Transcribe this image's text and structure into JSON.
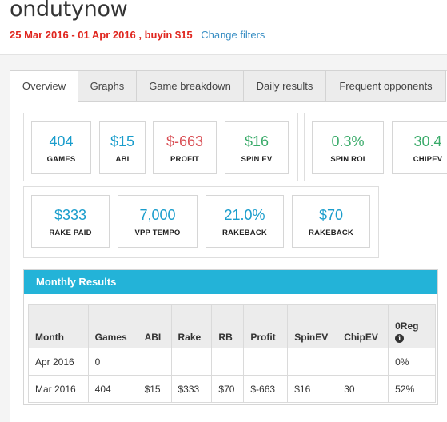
{
  "header": {
    "username": "ondutynow",
    "filter_text": "25 Mar 2016 - 01 Apr 2016 , buyin $15",
    "change_filters": "Change filters"
  },
  "tabs": [
    "Overview",
    "Graphs",
    "Game breakdown",
    "Daily results",
    "Frequent opponents"
  ],
  "stats_row1_a": [
    {
      "value": "404",
      "label": "GAMES",
      "color": "#1a9dcc"
    },
    {
      "value": "$15",
      "label": "ABI",
      "color": "#1a9dcc"
    },
    {
      "value": "$-663",
      "label": "PROFIT",
      "color": "#d94f55"
    },
    {
      "value": "$16",
      "label": "SPIN EV",
      "color": "#3aab6a"
    }
  ],
  "stats_row1_b": [
    {
      "value": "0.3%",
      "label": "SPIN ROI",
      "color": "#3aab6a"
    },
    {
      "value": "30.4",
      "label": "CHIPEV",
      "color": "#3aab6a"
    }
  ],
  "stats_row2": [
    {
      "value": "$333",
      "label": "RAKE PAID",
      "color": "#1a9dcc"
    },
    {
      "value": "7,000",
      "label": "VPP TEMPO",
      "color": "#1a9dcc"
    },
    {
      "value": "21.0%",
      "label": "RAKEBACK",
      "color": "#1a9dcc"
    },
    {
      "value": "$70",
      "label": "RAKEBACK",
      "color": "#1a9dcc"
    }
  ],
  "monthly": {
    "title": "Monthly Results",
    "columns": [
      "Month",
      "Games",
      "ABI",
      "Rake",
      "RB",
      "Profit",
      "SpinEV",
      "ChipEV",
      "0Reg"
    ],
    "info_icon": "i",
    "rows": [
      [
        "Apr 2016",
        "0",
        "",
        "",
        "",
        "",
        "",
        "",
        "0%"
      ],
      [
        "Mar 2016",
        "404",
        "$15",
        "$333",
        "$70",
        "$-663",
        "$16",
        "30",
        "52%"
      ]
    ]
  }
}
